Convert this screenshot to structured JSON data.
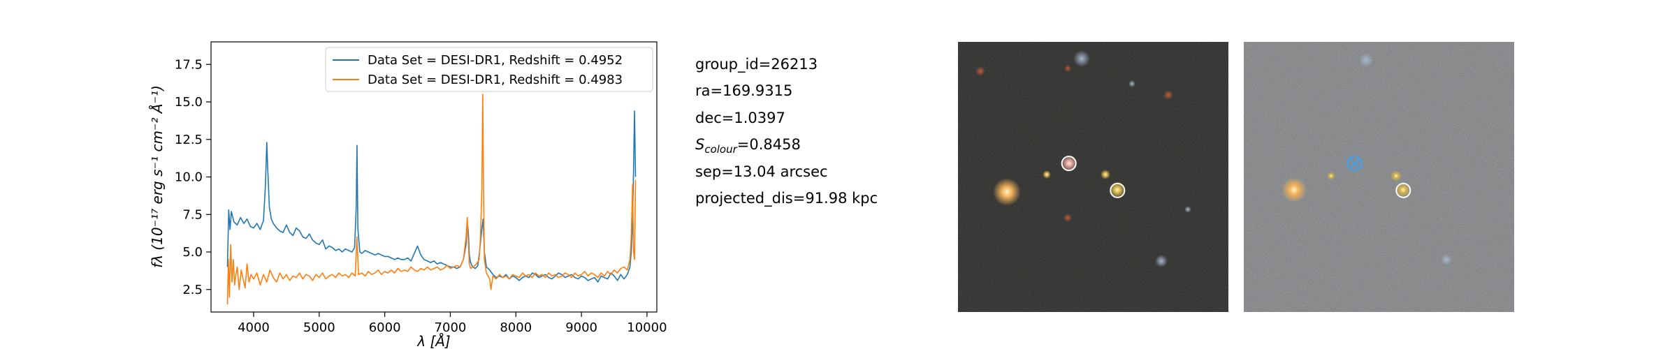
{
  "chart_data": {
    "type": "line",
    "xlabel": "λ [Å]",
    "ylabel": "fλ (10⁻¹⁷ erg s⁻¹ cm⁻² Å⁻¹)",
    "xlim": [
      3350,
      10150
    ],
    "ylim": [
      1.0,
      19.0
    ],
    "x_ticks": [
      4000,
      5000,
      6000,
      7000,
      8000,
      9000,
      10000
    ],
    "y_ticks": [
      2.5,
      5.0,
      7.5,
      10.0,
      12.5,
      15.0,
      17.5
    ],
    "x_tick_labels": [
      "4000",
      "5000",
      "6000",
      "7000",
      "8000",
      "9000",
      "10000"
    ],
    "y_tick_labels": [
      "2.5",
      "5.0",
      "7.5",
      "10.0",
      "12.5",
      "15.0",
      "17.5"
    ],
    "grid": false,
    "legend_position": "top-right",
    "series": [
      {
        "name": "Data Set = DESI-DR1, Redshift = 0.4952",
        "color": "#1f77b4",
        "x": [
          3600,
          3620,
          3640,
          3660,
          3700,
          3750,
          3800,
          3850,
          3900,
          3950,
          4000,
          4050,
          4100,
          4150,
          4180,
          4200,
          4215,
          4240,
          4270,
          4300,
          4350,
          4400,
          4450,
          4500,
          4550,
          4600,
          4650,
          4700,
          4750,
          4800,
          4850,
          4900,
          4950,
          5000,
          5050,
          5100,
          5150,
          5200,
          5250,
          5300,
          5350,
          5400,
          5450,
          5500,
          5540,
          5565,
          5577,
          5590,
          5620,
          5650,
          5700,
          5750,
          5800,
          5850,
          5900,
          5950,
          6000,
          6050,
          6100,
          6150,
          6200,
          6250,
          6300,
          6350,
          6400,
          6450,
          6500,
          6550,
          6600,
          6650,
          6700,
          6750,
          6800,
          6850,
          6900,
          6950,
          7000,
          7050,
          7100,
          7150,
          7200,
          7240,
          7260,
          7275,
          7290,
          7310,
          7340,
          7380,
          7420,
          7450,
          7480,
          7500,
          7520,
          7550,
          7600,
          7650,
          7700,
          7750,
          7800,
          7850,
          7900,
          7950,
          8000,
          8050,
          8100,
          8150,
          8200,
          8250,
          8300,
          8350,
          8400,
          8450,
          8500,
          8550,
          8600,
          8650,
          8700,
          8750,
          8800,
          8850,
          8900,
          8950,
          9000,
          9050,
          9100,
          9150,
          9200,
          9250,
          9300,
          9350,
          9400,
          9450,
          9500,
          9550,
          9600,
          9650,
          9700,
          9740,
          9760,
          9780,
          9795,
          9810,
          9825
        ],
        "values": [
          4.0,
          7.8,
          6.5,
          7.7,
          7.0,
          6.8,
          7.3,
          6.9,
          7.2,
          6.7,
          6.6,
          6.9,
          6.5,
          7.1,
          9.5,
          12.3,
          10.5,
          8.0,
          7.2,
          6.9,
          6.6,
          6.4,
          6.3,
          6.8,
          6.3,
          6.1,
          6.6,
          6.4,
          6.0,
          5.9,
          6.2,
          5.8,
          5.6,
          5.5,
          5.8,
          5.2,
          5.4,
          5.3,
          5.1,
          5.2,
          5.0,
          5.2,
          5.1,
          5.0,
          5.3,
          8.0,
          12.1,
          6.5,
          5.0,
          4.9,
          5.1,
          5.0,
          4.9,
          4.8,
          4.9,
          4.8,
          4.7,
          4.7,
          4.6,
          4.5,
          4.6,
          4.5,
          4.5,
          4.6,
          4.4,
          4.9,
          5.4,
          4.8,
          4.5,
          4.4,
          4.3,
          4.4,
          4.2,
          4.3,
          4.2,
          4.1,
          4.0,
          4.0,
          3.9,
          4.0,
          4.5,
          5.5,
          7.0,
          6.3,
          4.8,
          4.3,
          4.0,
          3.9,
          4.1,
          5.2,
          6.5,
          7.2,
          5.0,
          4.0,
          3.8,
          3.5,
          3.3,
          3.4,
          3.3,
          3.5,
          3.2,
          3.4,
          3.3,
          3.1,
          3.3,
          3.4,
          3.3,
          3.6,
          3.5,
          3.3,
          3.4,
          3.5,
          3.3,
          3.2,
          3.4,
          3.6,
          3.5,
          3.3,
          3.4,
          3.5,
          3.3,
          3.2,
          3.4,
          3.3,
          3.1,
          3.2,
          3.3,
          3.0,
          3.4,
          3.3,
          3.2,
          3.6,
          3.4,
          3.1,
          3.5,
          3.2,
          3.5,
          4.0,
          5.0,
          7.0,
          10.5,
          14.4,
          10.0
        ]
      },
      {
        "name": "Data Set = DESI-DR1, Redshift = 0.4983",
        "color": "#ff7f0e",
        "x": [
          3600,
          3615,
          3630,
          3650,
          3670,
          3690,
          3710,
          3730,
          3750,
          3780,
          3810,
          3840,
          3870,
          3900,
          3930,
          3960,
          4000,
          4050,
          4100,
          4150,
          4200,
          4250,
          4300,
          4350,
          4400,
          4450,
          4500,
          4550,
          4600,
          4650,
          4700,
          4750,
          4800,
          4850,
          4900,
          4950,
          5000,
          5050,
          5100,
          5150,
          5200,
          5250,
          5300,
          5350,
          5400,
          5450,
          5500,
          5550,
          5575,
          5600,
          5650,
          5700,
          5750,
          5800,
          5850,
          5900,
          5950,
          6000,
          6050,
          6100,
          6150,
          6200,
          6250,
          6300,
          6350,
          6400,
          6450,
          6500,
          6550,
          6600,
          6650,
          6700,
          6750,
          6800,
          6850,
          6900,
          6950,
          7000,
          7050,
          7100,
          7150,
          7200,
          7240,
          7260,
          7275,
          7290,
          7310,
          7350,
          7400,
          7440,
          7460,
          7480,
          7495,
          7505,
          7520,
          7550,
          7600,
          7620,
          7650,
          7700,
          7750,
          7800,
          7850,
          7900,
          7950,
          8000,
          8050,
          8100,
          8150,
          8200,
          8250,
          8300,
          8350,
          8400,
          8450,
          8500,
          8550,
          8600,
          8650,
          8700,
          8750,
          8800,
          8850,
          8900,
          8950,
          9000,
          9050,
          9100,
          9150,
          9200,
          9250,
          9300,
          9350,
          9400,
          9450,
          9500,
          9550,
          9600,
          9650,
          9700,
          9740,
          9760,
          9780,
          9795,
          9810,
          9825
        ],
        "values": [
          1.5,
          4.5,
          2.0,
          5.5,
          3.0,
          4.5,
          2.8,
          3.5,
          4.0,
          2.5,
          3.8,
          3.2,
          2.6,
          4.2,
          3.0,
          3.5,
          3.2,
          3.6,
          2.8,
          3.5,
          3.0,
          3.8,
          3.3,
          3.0,
          3.6,
          3.2,
          3.5,
          3.1,
          3.4,
          3.3,
          3.6,
          3.2,
          3.5,
          3.4,
          3.1,
          3.5,
          3.3,
          3.6,
          3.2,
          3.4,
          3.5,
          3.3,
          3.6,
          3.4,
          3.5,
          3.3,
          3.6,
          3.4,
          6.0,
          3.5,
          3.6,
          3.4,
          3.7,
          3.5,
          3.6,
          3.8,
          3.5,
          3.7,
          3.6,
          3.8,
          3.6,
          3.9,
          3.7,
          3.8,
          3.7,
          4.0,
          3.8,
          3.7,
          3.9,
          3.8,
          4.0,
          3.8,
          3.9,
          4.0,
          3.8,
          3.9,
          4.1,
          3.9,
          4.0,
          4.1,
          4.0,
          4.5,
          6.0,
          7.3,
          5.5,
          4.2,
          3.9,
          4.0,
          4.2,
          4.5,
          6.0,
          9.0,
          15.5,
          10.0,
          4.5,
          3.6,
          3.2,
          2.5,
          3.4,
          3.2,
          3.5,
          3.3,
          3.4,
          3.2,
          3.5,
          3.4,
          3.3,
          3.6,
          3.4,
          3.5,
          3.3,
          3.6,
          3.4,
          3.5,
          3.3,
          3.6,
          3.4,
          3.5,
          3.3,
          3.4,
          3.6,
          3.5,
          3.3,
          3.6,
          3.4,
          3.5,
          3.7,
          3.4,
          3.6,
          3.5,
          3.3,
          3.6,
          3.4,
          3.7,
          3.5,
          3.8,
          3.6,
          3.9,
          4.0,
          3.8,
          4.5,
          6.0,
          9.5,
          5.0,
          4.5,
          9.8
        ]
      }
    ]
  },
  "info": {
    "group_id": "group_id=26213",
    "ra": "ra=169.9315",
    "dec": "dec=1.0397",
    "s_colour_symbol": "S",
    "s_colour_sub": "colour",
    "s_colour_value": "=0.8458",
    "sep": "sep=13.04 arcsec",
    "projected_dis": "projected_dis=91.98 kpc"
  },
  "images": {
    "left": {
      "markers": [
        {
          "name": "source-circle-1",
          "fx": 0.41,
          "fy": 0.45,
          "style": "circle"
        },
        {
          "name": "source-circle-2",
          "fx": 0.59,
          "fy": 0.55,
          "style": "circle"
        }
      ]
    },
    "right": {
      "markers": [
        {
          "name": "source-cross-marker",
          "fx": 0.41,
          "fy": 0.45,
          "style": "cross"
        },
        {
          "name": "source-circle-3",
          "fx": 0.59,
          "fy": 0.55,
          "style": "circle"
        }
      ]
    }
  }
}
